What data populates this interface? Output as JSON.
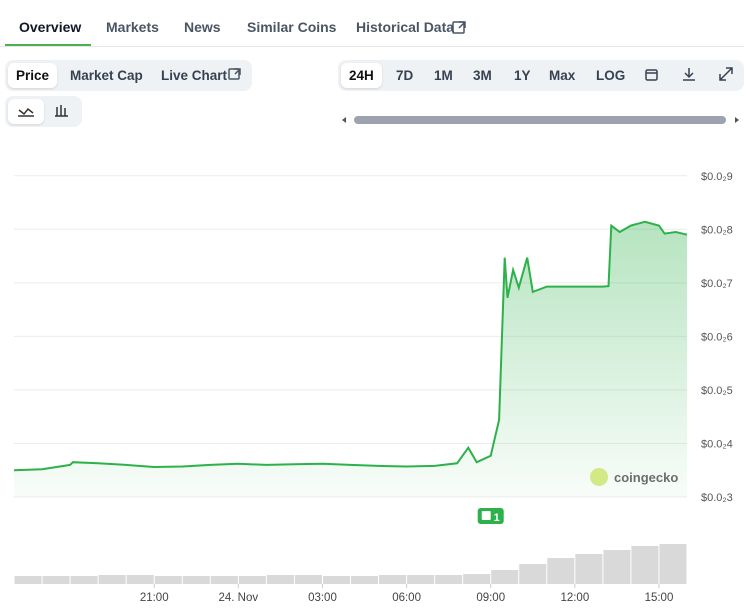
{
  "tabs": [
    "Overview",
    "Markets",
    "News",
    "Similar Coins",
    "Historical Data"
  ],
  "chart_modes": [
    "Price",
    "Market Cap",
    "Live Chart"
  ],
  "ranges": [
    "24H",
    "7D",
    "1M",
    "3M",
    "1Y",
    "Max",
    "LOG"
  ],
  "chart_data": {
    "type": "area",
    "x": [
      -8,
      -7,
      -6,
      -5.9,
      -5,
      -4,
      -3,
      -2,
      -1,
      0,
      1,
      2,
      3,
      4,
      5,
      6,
      7,
      7.8,
      8.2,
      8.5,
      9,
      9.3,
      9.5,
      9.6,
      9.8,
      10,
      10.3,
      10.5,
      11,
      12,
      13,
      13.2,
      13.3,
      13.6,
      14,
      14.5,
      15,
      15.2,
      15.6,
      16
    ],
    "values": [
      0.0035,
      0.00352,
      0.0036,
      0.00365,
      0.00363,
      0.0036,
      0.00356,
      0.00357,
      0.0036,
      0.00362,
      0.0036,
      0.00361,
      0.00362,
      0.0036,
      0.00358,
      0.00357,
      0.00358,
      0.00363,
      0.00392,
      0.00365,
      0.00377,
      0.00444,
      0.00747,
      0.00672,
      0.00724,
      0.00691,
      0.00747,
      0.00683,
      0.00693,
      0.00693,
      0.00693,
      0.00694,
      0.00807,
      0.00795,
      0.00807,
      0.00814,
      0.00807,
      0.00792,
      0.00795,
      0.0079
    ],
    "color": "#2db14a",
    "xlim": [
      -8,
      16
    ],
    "xticks": [
      {
        "value": -3,
        "label": "21:00"
      },
      {
        "value": 0,
        "label": "24. Nov"
      },
      {
        "value": 3,
        "label": "03:00"
      },
      {
        "value": 6,
        "label": "06:00"
      },
      {
        "value": 9,
        "label": "09:00"
      },
      {
        "value": 12,
        "label": "12:00"
      },
      {
        "value": 15,
        "label": "15:00"
      }
    ],
    "ylim": [
      0.003,
      0.0095
    ],
    "yticks": [
      {
        "value": 0.009,
        "label": "$0.0₂9"
      },
      {
        "value": 0.008,
        "label": "$0.0₂8"
      },
      {
        "value": 0.007,
        "label": "$0.0₂7"
      },
      {
        "value": 0.006,
        "label": "$0.0₂6"
      },
      {
        "value": 0.005,
        "label": "$0.0₂5"
      },
      {
        "value": 0.004,
        "label": "$0.0₂4"
      },
      {
        "value": 0.003,
        "label": "$0.0₂3"
      }
    ],
    "grid": true,
    "volume": {
      "x": [
        -7.5,
        -6.5,
        -5.5,
        -4.5,
        -3.5,
        -2.5,
        -1.5,
        -0.5,
        0.5,
        1.5,
        2.5,
        3.5,
        4.5,
        5.5,
        6.5,
        7.5,
        8.5,
        9.5,
        10.5,
        11.5,
        12.5,
        13.5,
        14.5,
        15.5
      ],
      "values": [
        8,
        8,
        8,
        9,
        9,
        8,
        8,
        8,
        8,
        9,
        9,
        8,
        8,
        9,
        9,
        9,
        10,
        14,
        20,
        26,
        30,
        34,
        38,
        40
      ],
      "color": "#d9d9d9"
    },
    "annotations": [
      {
        "x": 9,
        "text": "1"
      }
    ],
    "watermark": "coingecko"
  }
}
